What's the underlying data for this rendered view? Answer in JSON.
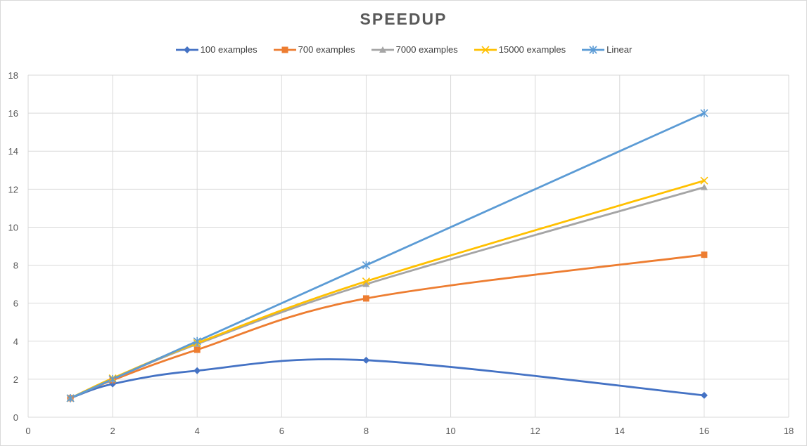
{
  "chart_data": {
    "type": "line",
    "title": "SPEEDUP",
    "xlabel": "",
    "ylabel": "",
    "xlim": [
      0,
      18
    ],
    "ylim": [
      0,
      18
    ],
    "xticks": [
      "0",
      "2",
      "4",
      "6",
      "8",
      "10",
      "12",
      "14",
      "16",
      "18"
    ],
    "yticks": [
      "0",
      "2",
      "4",
      "6",
      "8",
      "10",
      "12",
      "14",
      "16",
      "18"
    ],
    "grid": true,
    "legend_position": "top-center",
    "smoothed": true,
    "series": [
      {
        "name": "100 examples",
        "color": "#4472C4",
        "marker": "diamond",
        "x": [
          1,
          2,
          4,
          8,
          16
        ],
        "y": [
          1.0,
          1.75,
          2.45,
          3.0,
          1.15
        ]
      },
      {
        "name": "700 examples",
        "color": "#ED7D31",
        "marker": "square",
        "x": [
          1,
          2,
          4,
          8,
          16
        ],
        "y": [
          1.0,
          1.95,
          3.55,
          6.25,
          8.55
        ]
      },
      {
        "name": "7000 examples",
        "color": "#A5A5A5",
        "marker": "triangle",
        "x": [
          1,
          2,
          4,
          8,
          16
        ],
        "y": [
          1.0,
          2.0,
          3.85,
          7.0,
          12.1
        ]
      },
      {
        "name": "15000 examples",
        "color": "#FFC000",
        "marker": "x",
        "x": [
          1,
          2,
          4,
          8,
          16
        ],
        "y": [
          1.0,
          2.05,
          3.9,
          7.15,
          12.45
        ]
      },
      {
        "name": "Linear",
        "color": "#5B9BD5",
        "marker": "star",
        "x": [
          1,
          2,
          4,
          8,
          16
        ],
        "y": [
          1,
          2,
          4,
          8,
          16
        ]
      }
    ]
  }
}
